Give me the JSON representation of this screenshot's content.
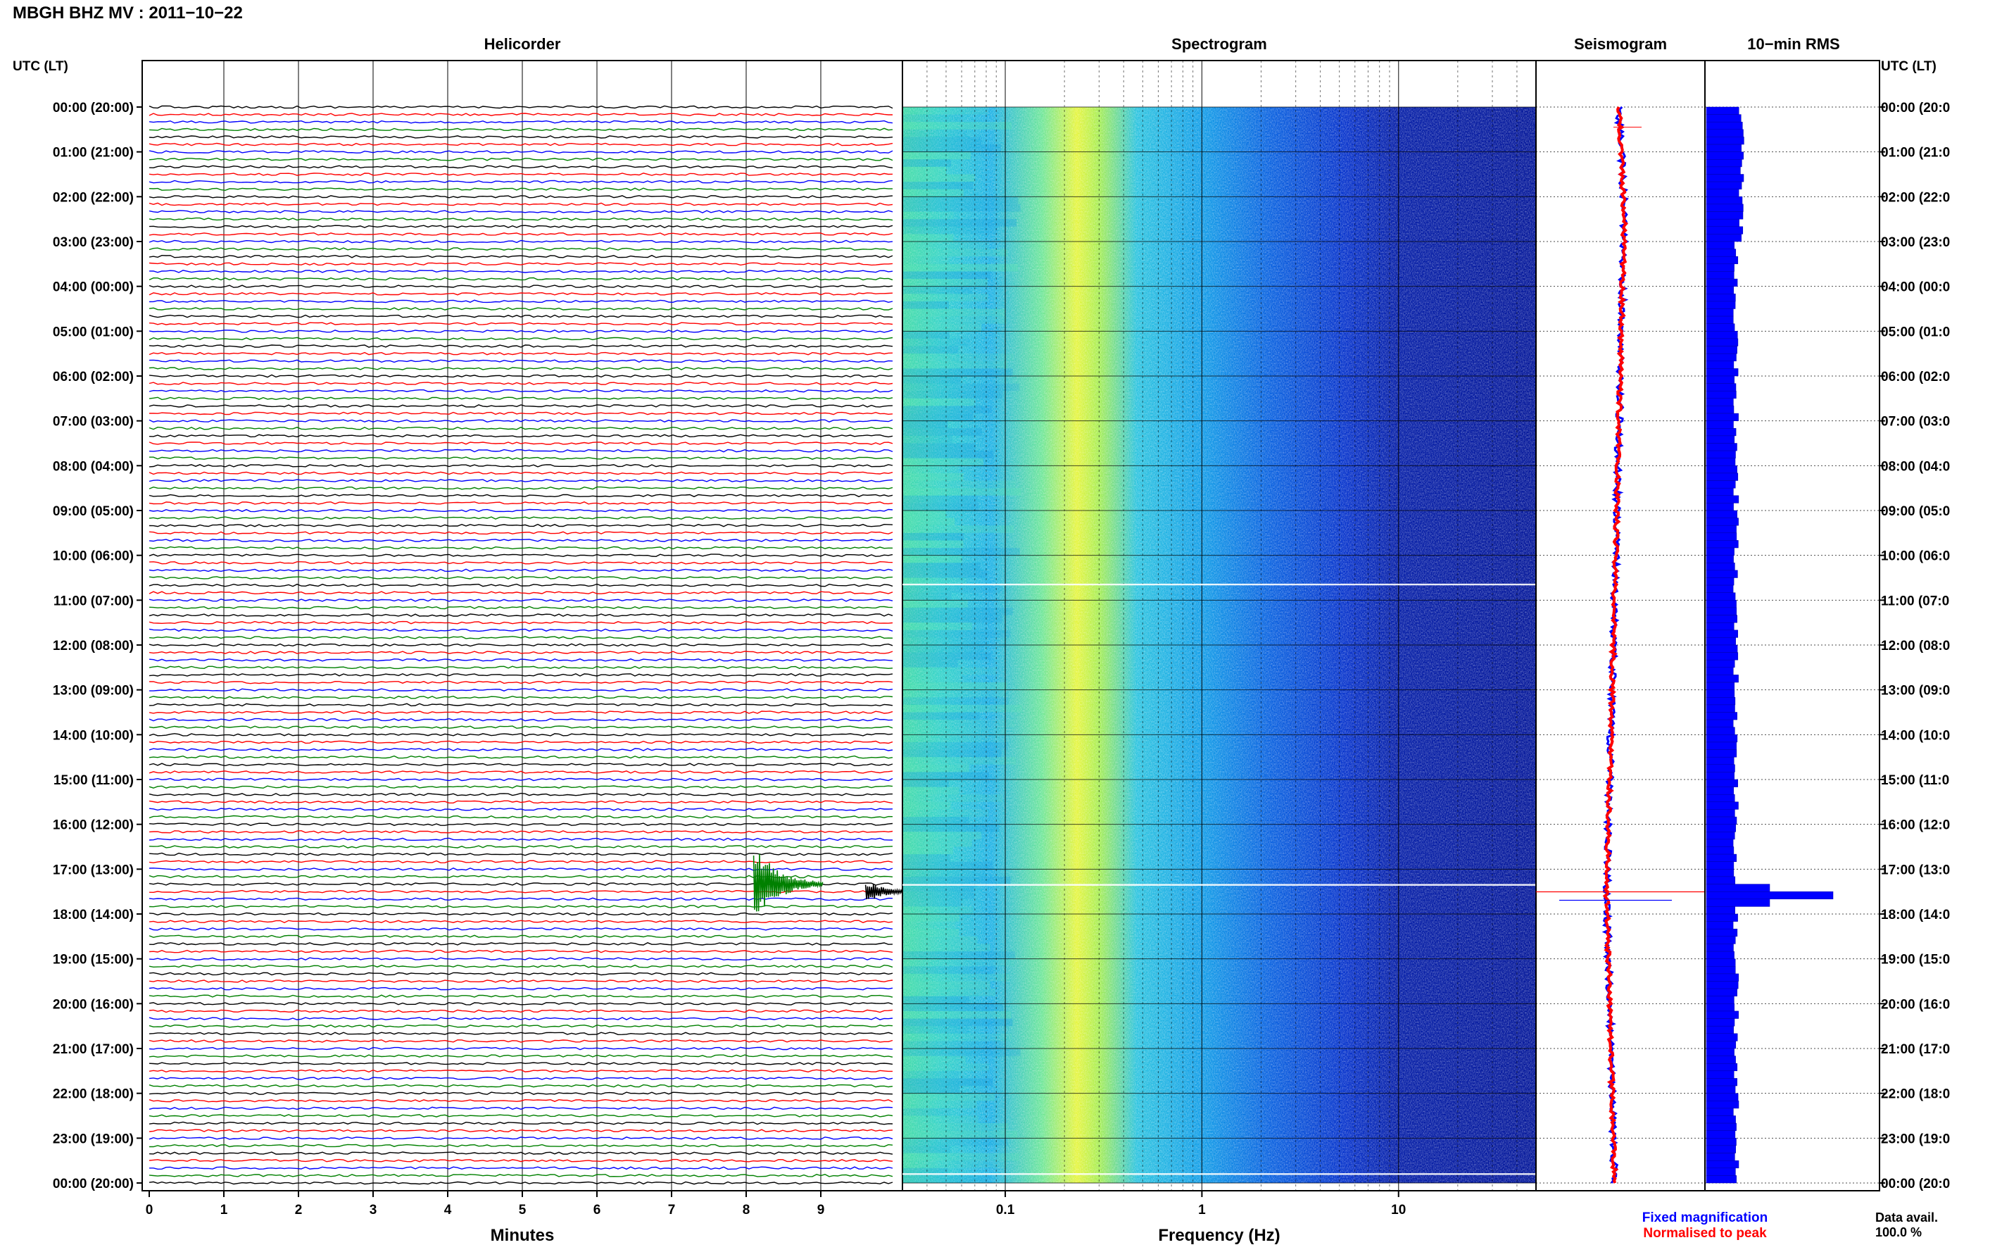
{
  "header": {
    "station_title": "MBGH BHZ MV : 2011−10−22",
    "utc_label_left": "UTC (LT)",
    "utc_label_right": "UTC (LT)"
  },
  "panels": {
    "helicorder": "Helicorder",
    "spectrogram": "Spectrogram",
    "seismogram": "Seismogram",
    "rms": "10−min RMS"
  },
  "axes": {
    "minutes_label": "Minutes",
    "minutes_ticks": [
      "0",
      "1",
      "2",
      "3",
      "4",
      "5",
      "6",
      "7",
      "8",
      "9"
    ],
    "frequency_label": "Frequency (Hz)",
    "frequency_ticks": [
      "0.1",
      "1",
      "10"
    ]
  },
  "legend": {
    "fixed": "Fixed magnification",
    "normalised": "Normalised to peak",
    "fixed_color": "#0000ff",
    "normalised_color": "#ff0000"
  },
  "data_avail": {
    "label": "Data avail.",
    "value": "100.0 %"
  },
  "time_labels": [
    "00:00 (20:00)",
    "01:00 (21:00)",
    "02:00 (22:00)",
    "03:00 (23:00)",
    "04:00 (00:00)",
    "05:00 (01:00)",
    "06:00 (02:00)",
    "07:00 (03:00)",
    "08:00 (04:00)",
    "09:00 (05:00)",
    "10:00 (06:00)",
    "11:00 (07:00)",
    "12:00 (08:00)",
    "13:00 (09:00)",
    "14:00 (10:00)",
    "15:00 (11:00)",
    "16:00 (12:00)",
    "17:00 (13:00)",
    "18:00 (14:00)",
    "19:00 (15:00)",
    "20:00 (16:00)",
    "21:00 (17:00)",
    "22:00 (18:00)",
    "23:00 (19:00)",
    "00:00 (20:00)"
  ],
  "time_labels_right": [
    "00:00 (20:0",
    "01:00 (21:0",
    "02:00 (22:0",
    "03:00 (23:0",
    "04:00 (00:0",
    "05:00 (01:0",
    "06:00 (02:0",
    "07:00 (03:0",
    "08:00 (04:0",
    "09:00 (05:0",
    "10:00 (06:0",
    "11:00 (07:0",
    "12:00 (08:0",
    "13:00 (09:0",
    "14:00 (10:0",
    "15:00 (11:0",
    "16:00 (12:0",
    "17:00 (13:0",
    "18:00 (14:0",
    "19:00 (15:0",
    "20:00 (16:0",
    "21:00 (17:0",
    "22:00 (18:0",
    "23:00 (19:0",
    "00:00 (20:0"
  ],
  "chart_data": [
    {
      "type": "line",
      "panel": "Helicorder",
      "xlabel": "Minutes",
      "xlim": [
        0,
        10
      ],
      "rows": 144,
      "trace_colors": [
        "#000000",
        "#ff0000",
        "#0000ff",
        "#008000"
      ],
      "events": [
        {
          "hour": 17.33,
          "minute": 8.1,
          "amplitude": "large",
          "color": "#008000"
        },
        {
          "hour": 17.5,
          "minute": 9.6,
          "amplitude": "medium",
          "color": "#000000"
        }
      ]
    },
    {
      "type": "heatmap",
      "panel": "Spectrogram",
      "xlabel": "Frequency (Hz)",
      "xscale": "log",
      "xlim": [
        0.03,
        50
      ],
      "peak_band_hz": [
        0.2,
        0.4
      ]
    },
    {
      "type": "line",
      "panel": "Seismogram",
      "series": [
        {
          "name": "Fixed magnification",
          "color": "#0000ff"
        },
        {
          "name": "Normalised to peak",
          "color": "#ff0000"
        }
      ],
      "spike_hour": 17.6
    },
    {
      "type": "bar",
      "panel": "10-min RMS",
      "bins": 144,
      "peak_hour": 17.5
    }
  ]
}
